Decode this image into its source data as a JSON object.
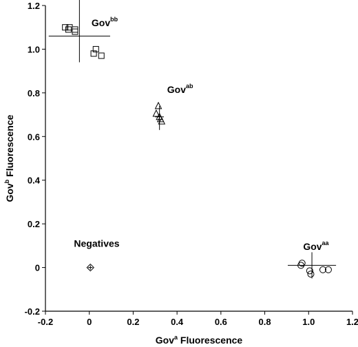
{
  "chart_data": {
    "type": "scatter",
    "title": "",
    "xlabel": {
      "main": "Gov",
      "sup": "a",
      "rest": " Fluorescence"
    },
    "ylabel": {
      "main": "Gov",
      "sup": "b",
      "rest": " Fluorescence"
    },
    "xlim": [
      -0.2,
      1.2
    ],
    "ylim": [
      -0.2,
      1.2
    ],
    "xticks": [
      -0.2,
      0,
      0.2,
      0.4,
      0.6,
      0.8,
      1.0,
      1.2
    ],
    "xtick_labels": [
      "-0.2",
      "0",
      "0.2",
      "0.4",
      "0.6",
      "0.8",
      "1.0",
      "1.2"
    ],
    "yticks": [
      -0.2,
      0,
      0.2,
      0.4,
      0.6,
      0.8,
      1.0,
      1.2
    ],
    "ytick_labels": [
      "-0.2",
      "0",
      "0.2",
      "0.4",
      "0.6",
      "0.8",
      "1.0",
      "1.2"
    ],
    "grid": false,
    "series": [
      {
        "marker": "square",
        "points": [
          [
            -0.11,
            1.1
          ],
          [
            -0.09,
            1.1
          ],
          [
            -0.095,
            1.09
          ],
          [
            -0.065,
            1.09
          ],
          [
            -0.065,
            1.08
          ],
          [
            0.02,
            0.98
          ],
          [
            0.03,
            1.0
          ],
          [
            0.055,
            0.97
          ]
        ],
        "errorbar": {
          "x": -0.045,
          "y": 1.06,
          "xerr": 0.14,
          "yerr_low": 0.12,
          "yerr_high": 0.19
        }
      },
      {
        "marker": "triangle",
        "points": [
          [
            0.305,
            0.705
          ],
          [
            0.315,
            0.74
          ],
          [
            0.32,
            0.69
          ],
          [
            0.325,
            0.68
          ],
          [
            0.33,
            0.67
          ]
        ],
        "errorbar": {
          "x": 0.32,
          "y": 0.69,
          "xerr": 0.02,
          "yerr_low": 0.06,
          "yerr_high": 0.05
        }
      },
      {
        "marker": "circle",
        "points": [
          [
            0.965,
            0.01
          ],
          [
            0.97,
            0.02
          ],
          [
            1.005,
            -0.015
          ],
          [
            1.01,
            -0.03
          ],
          [
            1.065,
            -0.01
          ],
          [
            1.09,
            -0.01
          ]
        ],
        "errorbar": {
          "x": 1.015,
          "y": 0.01,
          "xerr": 0.11,
          "yerr_low": 0.06,
          "yerr_high": 0.06
        }
      },
      {
        "marker": "diamond",
        "points": [
          [
            0.005,
            0.0
          ]
        ],
        "errorbar": {
          "x": 0.005,
          "y": 0.0,
          "xerr": 0.01,
          "yerr_low": 0.01,
          "yerr_high": 0.01
        }
      }
    ],
    "annotations": [
      {
        "main": "Gov",
        "sup": "bb",
        "x": 0.01,
        "y": 1.105
      },
      {
        "main": "Gov",
        "sup": "ab",
        "x": 0.355,
        "y": 0.8
      },
      {
        "main": "Gov",
        "sup": "aa",
        "x": 0.975,
        "y": 0.08
      },
      {
        "main": "Negatives",
        "sup": "",
        "x": -0.07,
        "y": 0.095
      }
    ]
  }
}
